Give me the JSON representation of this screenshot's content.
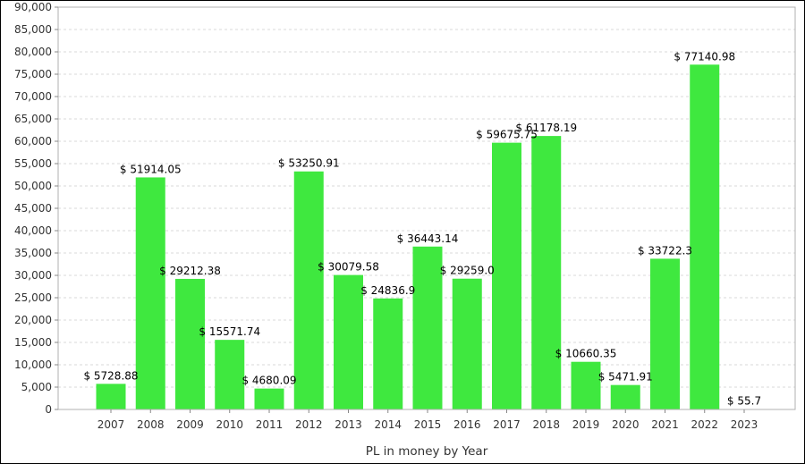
{
  "chart_data": {
    "type": "bar",
    "title": "",
    "xlabel": "PL in money by Year",
    "ylabel": "",
    "categories": [
      "2007",
      "2008",
      "2009",
      "2010",
      "2011",
      "2012",
      "2013",
      "2014",
      "2015",
      "2016",
      "2017",
      "2018",
      "2019",
      "2020",
      "2021",
      "2022",
      "2023"
    ],
    "values": [
      5728.88,
      51914.05,
      29212.38,
      15571.74,
      4680.09,
      53250.91,
      30079.58,
      24836.9,
      36443.14,
      29259.0,
      59675.75,
      61178.19,
      10660.35,
      5471.91,
      33722.3,
      77140.98,
      55.7
    ],
    "data_labels": [
      "$ 5728.88",
      "$ 51914.05",
      "$ 29212.38",
      "$ 15571.74",
      "$ 4680.09",
      "$ 53250.91",
      "$ 30079.58",
      "$ 24836.9",
      "$ 36443.14",
      "$ 29259.0",
      "$ 59675.75",
      "$ 61178.19",
      "$ 10660.35",
      "$ 5471.91",
      "$ 33722.3",
      "$ 77140.98",
      "$ 55.7"
    ],
    "ylim": [
      0,
      90000
    ],
    "yticks": [
      0,
      5000,
      10000,
      15000,
      20000,
      25000,
      30000,
      35000,
      40000,
      45000,
      50000,
      55000,
      60000,
      65000,
      70000,
      75000,
      80000,
      85000,
      90000
    ],
    "ytick_labels": [
      "0",
      "5,000",
      "10,000",
      "15,000",
      "20,000",
      "25,000",
      "30,000",
      "35,000",
      "40,000",
      "45,000",
      "50,000",
      "55,000",
      "60,000",
      "65,000",
      "70,000",
      "75,000",
      "80,000",
      "85,000",
      "90,000"
    ],
    "grid": true,
    "bar_color": "#3fe83f",
    "grid_color": "#d8d8d8",
    "legend": "none"
  }
}
